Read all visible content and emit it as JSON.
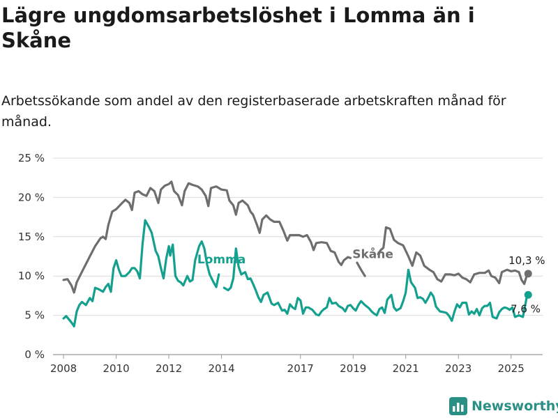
{
  "title": "Lägre ungdomsarbetslöshet i Lomma än i Skåne",
  "subtitle": "Arbetssökande som andel av den registerbaserade arbetskraften månad för månad.",
  "brand": "Newsworthy",
  "colors": {
    "skane": "#6e6e70",
    "lomma": "#14a08f",
    "grid": "#dcdcdc",
    "brand": "#2a8f84"
  },
  "chart_data": {
    "type": "line",
    "ylim": [
      0,
      25
    ],
    "xlim": [
      2007.6,
      2026.2
    ],
    "y_ticks": [
      0,
      5,
      10,
      15,
      20,
      25
    ],
    "y_tick_labels": [
      "0 %",
      "5 %",
      "10 %",
      "15 %",
      "20 %",
      "25 %"
    ],
    "x_ticks": [
      2008,
      2010,
      2012,
      2014,
      2017,
      2019,
      2021,
      2023,
      2025
    ],
    "x_tick_labels": [
      "2008",
      "2010",
      "2012",
      "2014",
      "2017",
      "2019",
      "2021",
      "2023",
      "2025"
    ],
    "grid": true,
    "series": [
      {
        "name": "Skåne",
        "color": "#6e6e70",
        "end_label": "10,3 %",
        "points": [
          [
            2008.0,
            9.5
          ],
          [
            2008.15,
            9.6
          ],
          [
            2008.3,
            8.8
          ],
          [
            2008.4,
            7.9
          ],
          [
            2008.5,
            9.2
          ],
          [
            2008.65,
            10.2
          ],
          [
            2008.8,
            11.2
          ],
          [
            2009.0,
            12.5
          ],
          [
            2009.2,
            13.8
          ],
          [
            2009.4,
            14.8
          ],
          [
            2009.5,
            15.0
          ],
          [
            2009.6,
            14.7
          ],
          [
            2009.7,
            16.5
          ],
          [
            2009.85,
            18.2
          ],
          [
            2010.0,
            18.5
          ],
          [
            2010.2,
            19.2
          ],
          [
            2010.35,
            19.7
          ],
          [
            2010.5,
            19.3
          ],
          [
            2010.6,
            18.4
          ],
          [
            2010.7,
            20.6
          ],
          [
            2010.85,
            20.8
          ],
          [
            2011.0,
            20.4
          ],
          [
            2011.15,
            20.2
          ],
          [
            2011.3,
            21.2
          ],
          [
            2011.45,
            20.8
          ],
          [
            2011.6,
            19.3
          ],
          [
            2011.7,
            21.0
          ],
          [
            2011.85,
            21.5
          ],
          [
            2012.0,
            21.7
          ],
          [
            2012.1,
            22.0
          ],
          [
            2012.2,
            20.8
          ],
          [
            2012.35,
            20.3
          ],
          [
            2012.5,
            19.0
          ],
          [
            2012.6,
            20.8
          ],
          [
            2012.75,
            21.8
          ],
          [
            2012.9,
            21.6
          ],
          [
            2013.1,
            21.4
          ],
          [
            2013.25,
            21.0
          ],
          [
            2013.4,
            20.2
          ],
          [
            2013.5,
            18.9
          ],
          [
            2013.6,
            21.2
          ],
          [
            2013.8,
            21.4
          ],
          [
            2014.0,
            21.0
          ],
          [
            2014.2,
            20.9
          ],
          [
            2014.3,
            19.6
          ],
          [
            2014.45,
            19.0
          ],
          [
            2014.55,
            17.8
          ],
          [
            2014.65,
            19.3
          ],
          [
            2014.8,
            19.6
          ],
          [
            2015.0,
            19.0
          ],
          [
            2015.1,
            18.2
          ],
          [
            2015.2,
            17.8
          ],
          [
            2015.35,
            16.5
          ],
          [
            2015.45,
            15.5
          ],
          [
            2015.55,
            17.2
          ],
          [
            2015.7,
            17.7
          ],
          [
            2015.85,
            17.2
          ],
          [
            2016.0,
            16.9
          ],
          [
            2016.2,
            16.9
          ],
          [
            2016.35,
            15.8
          ],
          [
            2016.5,
            14.5
          ],
          [
            2016.6,
            15.2
          ],
          [
            2016.8,
            15.2
          ],
          [
            2016.95,
            15.2
          ],
          [
            2017.1,
            15.0
          ],
          [
            2017.25,
            15.2
          ],
          [
            2017.4,
            14.3
          ],
          [
            2017.5,
            13.3
          ],
          [
            2017.6,
            14.2
          ],
          [
            2017.8,
            14.3
          ],
          [
            2018.0,
            14.2
          ],
          [
            2018.15,
            13.2
          ],
          [
            2018.3,
            13.0
          ],
          [
            2018.45,
            11.8
          ],
          [
            2018.55,
            11.4
          ],
          [
            2018.65,
            12.0
          ],
          [
            2018.8,
            12.4
          ],
          [
            2018.9,
            12.3
          ]
        ],
        "points_2": [
          [
            2019.15,
            11.7
          ],
          [
            2019.3,
            10.8
          ],
          [
            2019.45,
            10.0
          ]
        ],
        "points_3": [
          [
            2019.95,
            12.8
          ],
          [
            2020.05,
            13.3
          ],
          [
            2020.15,
            13.6
          ],
          [
            2020.25,
            16.2
          ],
          [
            2020.4,
            16.0
          ],
          [
            2020.55,
            14.6
          ],
          [
            2020.7,
            14.2
          ],
          [
            2020.9,
            13.9
          ],
          [
            2021.1,
            12.5
          ],
          [
            2021.25,
            11.3
          ],
          [
            2021.4,
            13.0
          ],
          [
            2021.55,
            12.6
          ],
          [
            2021.7,
            11.3
          ],
          [
            2021.9,
            10.8
          ],
          [
            2022.05,
            10.5
          ],
          [
            2022.2,
            9.6
          ],
          [
            2022.35,
            9.3
          ],
          [
            2022.5,
            10.2
          ],
          [
            2022.7,
            10.2
          ],
          [
            2022.85,
            10.1
          ],
          [
            2023.0,
            10.3
          ],
          [
            2023.15,
            9.8
          ],
          [
            2023.3,
            9.6
          ],
          [
            2023.45,
            9.2
          ],
          [
            2023.6,
            10.2
          ],
          [
            2023.8,
            10.4
          ],
          [
            2024.0,
            10.4
          ],
          [
            2024.15,
            10.7
          ],
          [
            2024.25,
            10.0
          ],
          [
            2024.4,
            9.8
          ],
          [
            2024.55,
            9.1
          ],
          [
            2024.65,
            10.5
          ],
          [
            2024.85,
            10.8
          ],
          [
            2025.0,
            10.6
          ],
          [
            2025.15,
            10.7
          ],
          [
            2025.3,
            10.5
          ],
          [
            2025.4,
            9.5
          ],
          [
            2025.5,
            9.0
          ],
          [
            2025.6,
            10.1
          ]
        ],
        "end_point": [
          2025.65,
          10.3
        ]
      },
      {
        "name": "Lomma",
        "color": "#14a08f",
        "end_label": "7,6 %",
        "points": [
          [
            2008.0,
            4.6
          ],
          [
            2008.1,
            4.9
          ],
          [
            2008.2,
            4.5
          ],
          [
            2008.3,
            4.1
          ],
          [
            2008.4,
            3.6
          ],
          [
            2008.5,
            5.5
          ],
          [
            2008.6,
            6.3
          ],
          [
            2008.7,
            6.7
          ],
          [
            2008.85,
            6.3
          ],
          [
            2009.0,
            7.2
          ],
          [
            2009.1,
            6.8
          ],
          [
            2009.2,
            8.5
          ],
          [
            2009.35,
            8.3
          ],
          [
            2009.5,
            8.0
          ],
          [
            2009.6,
            8.6
          ],
          [
            2009.7,
            9.0
          ],
          [
            2009.8,
            8.0
          ],
          [
            2009.9,
            11.0
          ],
          [
            2010.0,
            12.0
          ],
          [
            2010.1,
            10.8
          ],
          [
            2010.2,
            10.0
          ],
          [
            2010.35,
            10.0
          ],
          [
            2010.5,
            10.5
          ],
          [
            2010.6,
            11.0
          ],
          [
            2010.7,
            11.0
          ],
          [
            2010.8,
            10.6
          ],
          [
            2010.9,
            9.7
          ],
          [
            2011.0,
            14.0
          ],
          [
            2011.1,
            17.1
          ],
          [
            2011.25,
            16.2
          ],
          [
            2011.35,
            15.5
          ],
          [
            2011.5,
            13.2
          ],
          [
            2011.6,
            12.5
          ],
          [
            2011.7,
            11.0
          ],
          [
            2011.8,
            9.7
          ],
          [
            2011.9,
            12.2
          ],
          [
            2012.0,
            13.8
          ],
          [
            2012.05,
            12.6
          ],
          [
            2012.15,
            14.0
          ],
          [
            2012.25,
            10.0
          ],
          [
            2012.35,
            9.4
          ],
          [
            2012.45,
            9.2
          ],
          [
            2012.55,
            8.8
          ],
          [
            2012.7,
            10.0
          ],
          [
            2012.8,
            9.3
          ],
          [
            2012.9,
            9.5
          ],
          [
            2013.0,
            12.0
          ],
          [
            2013.15,
            13.8
          ],
          [
            2013.25,
            14.4
          ],
          [
            2013.35,
            13.5
          ],
          [
            2013.45,
            11.5
          ],
          [
            2013.55,
            10.2
          ],
          [
            2013.7,
            9.2
          ],
          [
            2013.8,
            8.6
          ],
          [
            2013.9,
            10.2
          ]
        ],
        "points_2": [
          [
            2014.1,
            8.5
          ],
          [
            2014.25,
            8.2
          ],
          [
            2014.35,
            8.5
          ],
          [
            2014.45,
            9.7
          ],
          [
            2014.55,
            13.5
          ],
          [
            2014.65,
            11.2
          ],
          [
            2014.75,
            10.2
          ],
          [
            2014.9,
            10.5
          ],
          [
            2015.0,
            9.6
          ],
          [
            2015.1,
            9.7
          ],
          [
            2015.2,
            9.0
          ],
          [
            2015.3,
            8.2
          ],
          [
            2015.4,
            7.3
          ],
          [
            2015.5,
            6.7
          ],
          [
            2015.6,
            7.6
          ],
          [
            2015.75,
            7.9
          ],
          [
            2015.9,
            6.5
          ],
          [
            2016.0,
            6.3
          ],
          [
            2016.15,
            6.6
          ],
          [
            2016.3,
            5.6
          ],
          [
            2016.4,
            5.7
          ],
          [
            2016.5,
            5.2
          ],
          [
            2016.6,
            6.4
          ],
          [
            2016.7,
            6.0
          ],
          [
            2016.8,
            5.8
          ],
          [
            2016.9,
            7.2
          ],
          [
            2017.0,
            6.9
          ],
          [
            2017.1,
            5.2
          ],
          [
            2017.2,
            6.0
          ],
          [
            2017.3,
            6.0
          ],
          [
            2017.45,
            5.7
          ],
          [
            2017.6,
            5.1
          ],
          [
            2017.7,
            5.0
          ],
          [
            2017.8,
            5.5
          ],
          [
            2017.9,
            5.8
          ],
          [
            2018.0,
            6.0
          ],
          [
            2018.1,
            7.2
          ],
          [
            2018.2,
            6.5
          ],
          [
            2018.35,
            6.6
          ],
          [
            2018.45,
            6.2
          ],
          [
            2018.6,
            5.9
          ],
          [
            2018.7,
            5.5
          ],
          [
            2018.8,
            6.2
          ],
          [
            2018.9,
            6.3
          ],
          [
            2019.0,
            5.9
          ],
          [
            2019.1,
            5.6
          ],
          [
            2019.2,
            6.3
          ],
          [
            2019.3,
            6.8
          ],
          [
            2019.45,
            6.3
          ],
          [
            2019.6,
            5.9
          ],
          [
            2019.7,
            5.5
          ],
          [
            2019.8,
            5.2
          ],
          [
            2019.9,
            5.0
          ],
          [
            2020.0,
            5.8
          ],
          [
            2020.1,
            6.0
          ],
          [
            2020.2,
            5.3
          ],
          [
            2020.3,
            7.0
          ],
          [
            2020.45,
            7.6
          ],
          [
            2020.55,
            6.0
          ],
          [
            2020.65,
            5.6
          ],
          [
            2020.8,
            5.9
          ],
          [
            2020.9,
            6.8
          ],
          [
            2021.0,
            7.9
          ],
          [
            2021.1,
            10.8
          ],
          [
            2021.2,
            9.2
          ],
          [
            2021.35,
            8.5
          ],
          [
            2021.45,
            7.2
          ],
          [
            2021.55,
            7.3
          ],
          [
            2021.65,
            7.1
          ],
          [
            2021.75,
            6.6
          ],
          [
            2021.85,
            7.2
          ],
          [
            2021.95,
            7.9
          ],
          [
            2022.05,
            7.4
          ],
          [
            2022.15,
            6.1
          ],
          [
            2022.3,
            5.5
          ],
          [
            2022.45,
            5.4
          ],
          [
            2022.55,
            5.3
          ],
          [
            2022.65,
            4.9
          ],
          [
            2022.75,
            4.3
          ],
          [
            2022.85,
            5.5
          ],
          [
            2022.95,
            6.4
          ],
          [
            2023.05,
            6.0
          ],
          [
            2023.15,
            6.6
          ],
          [
            2023.3,
            6.6
          ],
          [
            2023.4,
            5.1
          ],
          [
            2023.5,
            5.5
          ],
          [
            2023.6,
            5.2
          ],
          [
            2023.7,
            5.8
          ],
          [
            2023.8,
            5.0
          ],
          [
            2023.9,
            5.9
          ],
          [
            2024.0,
            6.2
          ],
          [
            2024.1,
            6.2
          ],
          [
            2024.2,
            6.6
          ],
          [
            2024.3,
            4.8
          ],
          [
            2024.45,
            4.6
          ],
          [
            2024.55,
            5.4
          ],
          [
            2024.65,
            5.8
          ],
          [
            2024.75,
            6.0
          ],
          [
            2024.85,
            5.9
          ],
          [
            2024.95,
            5.7
          ],
          [
            2025.05,
            6.0
          ],
          [
            2025.15,
            4.8
          ],
          [
            2025.3,
            5.0
          ],
          [
            2025.45,
            4.8
          ],
          [
            2025.6,
            7.4
          ]
        ],
        "end_point": [
          2025.65,
          7.6
        ]
      }
    ]
  }
}
